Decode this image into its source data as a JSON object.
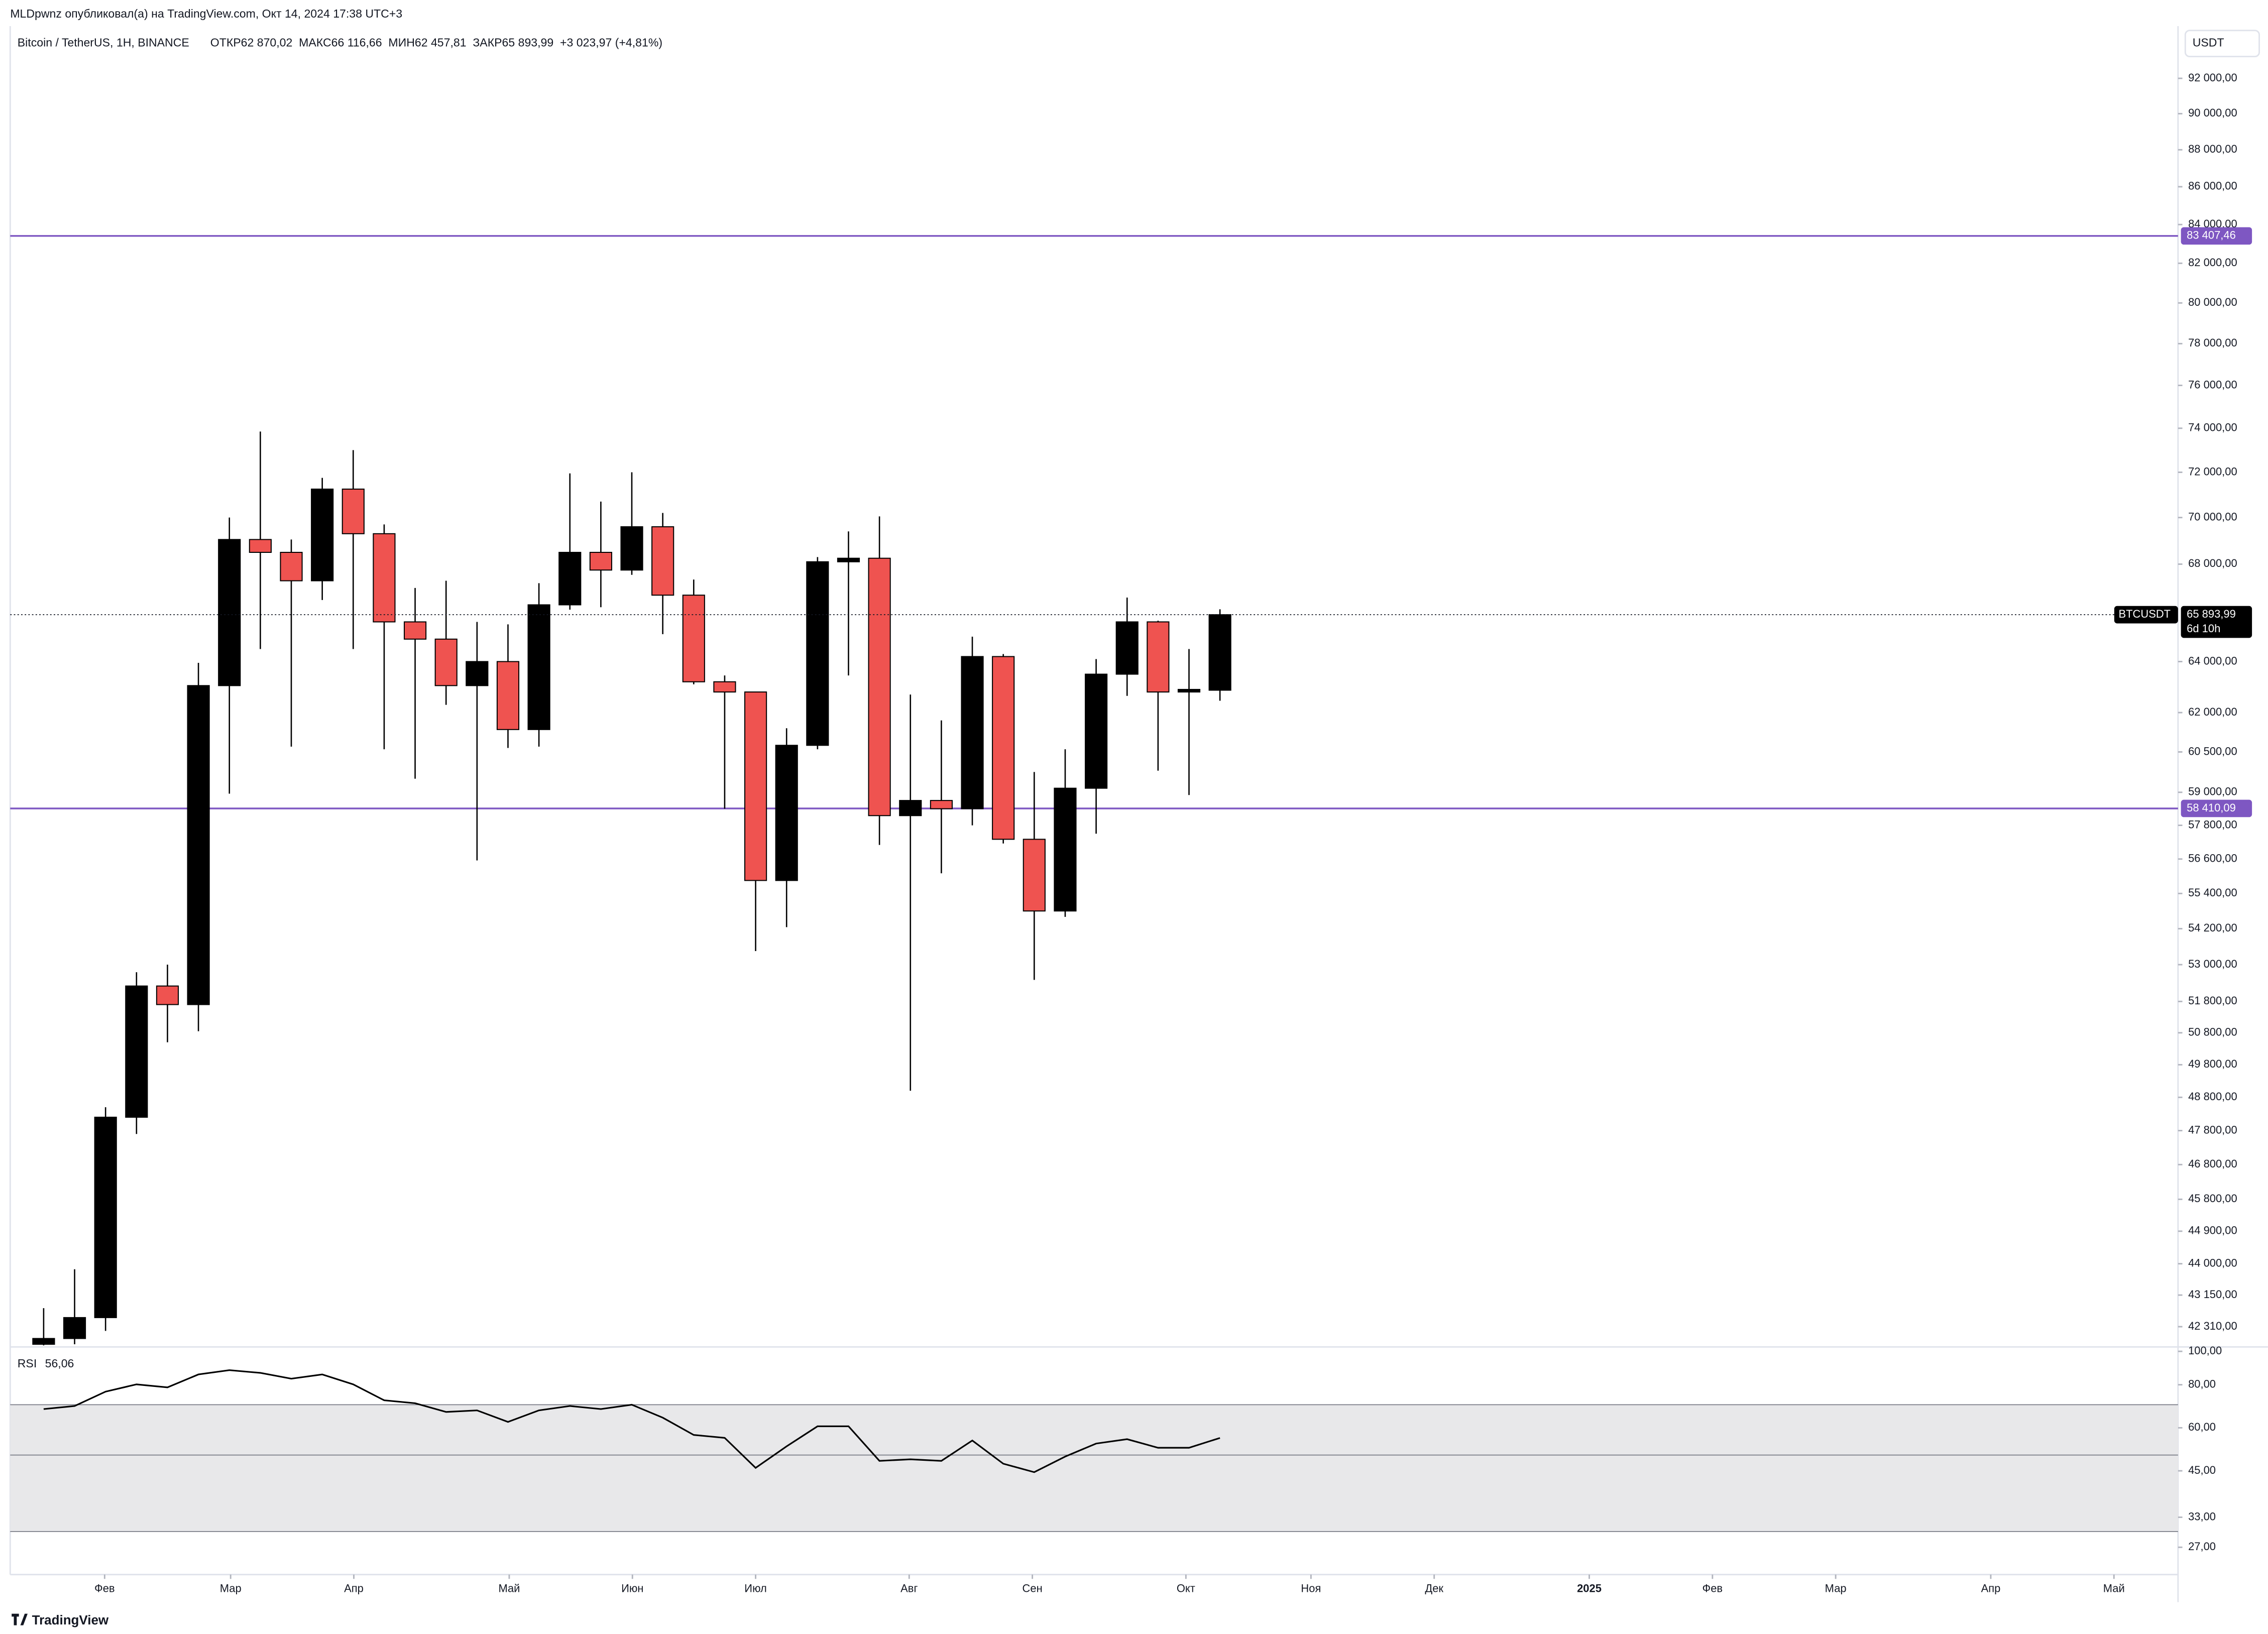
{
  "header": {
    "author_line": "MLDpwnz опубликовал(а) на TradingView.com, Окт 14, 2024 17:38 UTC+3",
    "logo": "TradingView"
  },
  "chart_data": [
    {
      "type": "candlestick",
      "title": "Bitcoin / TetherUS, 1H, BINANCE",
      "ohlc": "ОТКР62 870,02  МАКС66 116,66  МИН62 457,81  ЗАКР65 893,99  +3 023,97 (+4,81%)",
      "currency": "USDT",
      "log_scale": true,
      "grid": false,
      "up_color": "#000000",
      "down_color": "#ef5350",
      "x": [
        0,
        1,
        2,
        3,
        4,
        5,
        6,
        7,
        8,
        9,
        10,
        11,
        12,
        13,
        14,
        15,
        16,
        17,
        18,
        19,
        20,
        21,
        22,
        23,
        24,
        25,
        26,
        27,
        28,
        29,
        30,
        31,
        32,
        33,
        34,
        35,
        36,
        37,
        38
      ],
      "open": [
        41850,
        42000,
        42550,
        48200,
        52300,
        51700,
        63050,
        69050,
        68500,
        67300,
        71250,
        69300,
        65600,
        64900,
        63050,
        64000,
        61350,
        66300,
        68500,
        67750,
        69600,
        66700,
        63200,
        62800,
        55850,
        60750,
        68100,
        68250,
        58150,
        58700,
        58400,
        64200,
        57300,
        54800,
        59150,
        63500,
        65600,
        62800,
        62870.02
      ],
      "high": [
        42800,
        43850,
        48500,
        52750,
        53000,
        63950,
        70000,
        73850,
        69050,
        71750,
        73000,
        69700,
        67000,
        67300,
        65600,
        65500,
        67200,
        71950,
        70700,
        72000,
        70200,
        67350,
        63450,
        62800,
        61400,
        68300,
        69400,
        70050,
        62700,
        61700,
        65000,
        64300,
        59750,
        60600,
        64100,
        66600,
        65650,
        64500,
        66116.66
      ],
      "low": [
        41820,
        41850,
        42200,
        47700,
        50500,
        50850,
        58950,
        64500,
        60700,
        66500,
        64500,
        60600,
        59500,
        62300,
        56550,
        60650,
        60700,
        66100,
        66200,
        67550,
        65100,
        63100,
        58400,
        53450,
        54250,
        60600,
        63450,
        57100,
        49000,
        56100,
        57800,
        57150,
        52500,
        54600,
        57500,
        62650,
        59800,
        58900,
        62457.81
      ],
      "close": [
        42000,
        42550,
        48200,
        52300,
        51700,
        63050,
        69050,
        68500,
        67300,
        71250,
        69300,
        65600,
        64900,
        63050,
        64000,
        61350,
        66300,
        68500,
        67750,
        69600,
        66700,
        63200,
        62800,
        55850,
        60750,
        68100,
        68250,
        58150,
        58700,
        58400,
        64200,
        57300,
        54800,
        59150,
        63500,
        65600,
        62800,
        62900,
        65893.99
      ],
      "last_price": {
        "symbol": "BTCUSDT",
        "label": "65 893,99",
        "countdown": "6d 10h"
      },
      "levels": [
        {
          "value": 83407.46,
          "label": "83 407,46",
          "color": "#7e57c2"
        },
        {
          "value": 58410.09,
          "label": "58 410,09",
          "color": "#7e57c2"
        }
      ],
      "xlim": [
        -1.08,
        68.95
      ],
      "xticks": [
        {
          "value": 1.97,
          "label": "Фев"
        },
        {
          "value": 6.04,
          "label": "Мар"
        },
        {
          "value": 10.02,
          "label": "Апр"
        },
        {
          "value": 15.04,
          "label": "Май"
        },
        {
          "value": 19.02,
          "label": "Июн"
        },
        {
          "value": 23,
          "label": "Июл"
        },
        {
          "value": 27.96,
          "label": "Авг"
        },
        {
          "value": 31.94,
          "label": "Сен"
        },
        {
          "value": 36.9,
          "label": "Окт"
        },
        {
          "value": 40.94,
          "label": "Ноя"
        },
        {
          "value": 44.92,
          "label": "Дек"
        },
        {
          "value": 49.93,
          "label": "2025"
        },
        {
          "value": 53.91,
          "label": "Фев"
        },
        {
          "value": 57.89,
          "label": "Мар"
        },
        {
          "value": 62.9,
          "label": "Апр"
        },
        {
          "value": 66.88,
          "label": "Май"
        }
      ],
      "ylim": [
        41818,
        95040
      ],
      "yticks": [
        {
          "value": 92000,
          "label": "92 000,00"
        },
        {
          "value": 90000,
          "label": "90 000,00"
        },
        {
          "value": 88000,
          "label": "88 000,00"
        },
        {
          "value": 86000,
          "label": "86 000,00"
        },
        {
          "value": 84000,
          "label": "84 000,00"
        },
        {
          "value": 82000,
          "label": "82 000,00"
        },
        {
          "value": 80000,
          "label": "80 000,00"
        },
        {
          "value": 78000,
          "label": "78 000,00"
        },
        {
          "value": 76000,
          "label": "76 000,00"
        },
        {
          "value": 74000,
          "label": "74 000,00"
        },
        {
          "value": 72000,
          "label": "72 000,00"
        },
        {
          "value": 70000,
          "label": "70 000,00"
        },
        {
          "value": 68000,
          "label": "68 000,00"
        },
        {
          "value": 64000,
          "label": "64 000,00"
        },
        {
          "value": 62000,
          "label": "62 000,00"
        },
        {
          "value": 60500,
          "label": "60 500,00"
        },
        {
          "value": 59000,
          "label": "59 000,00"
        },
        {
          "value": 57800,
          "label": "57 800,00"
        },
        {
          "value": 56600,
          "label": "56 600,00"
        },
        {
          "value": 55400,
          "label": "55 400,00"
        },
        {
          "value": 54200,
          "label": "54 200,00"
        },
        {
          "value": 53000,
          "label": "53 000,00"
        },
        {
          "value": 51800,
          "label": "51 800,00"
        },
        {
          "value": 50800,
          "label": "50 800,00"
        },
        {
          "value": 49800,
          "label": "49 800,00"
        },
        {
          "value": 48800,
          "label": "48 800,00"
        },
        {
          "value": 47800,
          "label": "47 800,00"
        },
        {
          "value": 46800,
          "label": "46 800,00"
        },
        {
          "value": 45800,
          "label": "45 800,00"
        },
        {
          "value": 44900,
          "label": "44 900,00"
        },
        {
          "value": 44000,
          "label": "44 000,00"
        },
        {
          "value": 43150,
          "label": "43 150,00"
        },
        {
          "value": 42310,
          "label": "42 310,00"
        }
      ]
    },
    {
      "type": "line",
      "title": "RSI",
      "legend_value": "56,06",
      "color": "#000000",
      "log_scale": true,
      "band": {
        "upper": 70,
        "middle": 50,
        "lower": 30,
        "color": "#e8e8ea"
      },
      "x": [
        0,
        1,
        2,
        3,
        4,
        5,
        6,
        7,
        8,
        9,
        10,
        11,
        12,
        13,
        14,
        15,
        16,
        17,
        18,
        19,
        20,
        21,
        22,
        23,
        24,
        25,
        26,
        27,
        28,
        29,
        30,
        31,
        32,
        33,
        34,
        35,
        36,
        37,
        38
      ],
      "values": [
        68.0,
        69.4,
        76.4,
        80.2,
        78.6,
        85.7,
        88.2,
        86.6,
        83.3,
        85.7,
        80.2,
        72.1,
        70.7,
        66.7,
        67.4,
        62.4,
        67.4,
        69.4,
        68.0,
        70.0,
        64.2,
        57.2,
        56.1,
        45.9,
        53.0,
        60.6,
        60.6,
        48.1,
        48.6,
        48.1,
        55.1,
        47.2,
        44.6,
        49.5,
        54.0,
        55.6,
        52.5,
        52.5,
        56.06
      ],
      "xlim": [
        -1.08,
        68.95
      ],
      "ylim": [
        22.5,
        103
      ],
      "yticks": [
        {
          "value": 100,
          "label": "100,00"
        },
        {
          "value": 80,
          "label": "80,00"
        },
        {
          "value": 60,
          "label": "60,00"
        },
        {
          "value": 45,
          "label": "45,00"
        },
        {
          "value": 33,
          "label": "33,00"
        },
        {
          "value": 27,
          "label": "27,00"
        }
      ]
    }
  ]
}
